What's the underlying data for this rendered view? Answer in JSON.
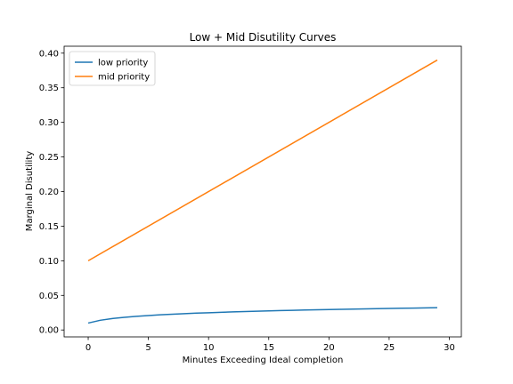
{
  "chart_data": {
    "type": "line",
    "title": "Low + Mid Disutility Curves",
    "xlabel": "Minutes Exceeding Ideal completion",
    "ylabel": "Marginal Disutility",
    "xlim": [
      -2,
      31
    ],
    "ylim": [
      -0.01,
      0.41
    ],
    "xticks": [
      0,
      5,
      10,
      15,
      20,
      25,
      30
    ],
    "xtick_labels": [
      "0",
      "5",
      "10",
      "15",
      "20",
      "25",
      "30"
    ],
    "yticks": [
      0.0,
      0.05,
      0.1,
      0.15,
      0.2,
      0.25,
      0.3,
      0.35,
      0.4
    ],
    "ytick_labels": [
      "0.00",
      "0.05",
      "0.10",
      "0.15",
      "0.20",
      "0.25",
      "0.30",
      "0.35",
      "0.40"
    ],
    "grid": false,
    "legend_position": "upper-left",
    "series": [
      {
        "name": "low priority",
        "color": "#1f77b4",
        "x": [
          0,
          1,
          2,
          3,
          4,
          5,
          6,
          7,
          8,
          9,
          10,
          11,
          12,
          13,
          14,
          15,
          16,
          17,
          18,
          19,
          20,
          21,
          22,
          23,
          24,
          25,
          26,
          27,
          28,
          29
        ],
        "y": [
          0.01,
          0.014,
          0.0165,
          0.0183,
          0.0197,
          0.0209,
          0.0219,
          0.0228,
          0.0236,
          0.0243,
          0.0249,
          0.0255,
          0.0261,
          0.0266,
          0.0271,
          0.0275,
          0.028,
          0.0284,
          0.0288,
          0.0291,
          0.0295,
          0.0298,
          0.0302,
          0.0305,
          0.0308,
          0.0311,
          0.0314,
          0.0316,
          0.0319,
          0.0322
        ]
      },
      {
        "name": "mid priority",
        "color": "#ff7f0e",
        "x": [
          0,
          29
        ],
        "y": [
          0.1,
          0.39
        ]
      }
    ]
  }
}
